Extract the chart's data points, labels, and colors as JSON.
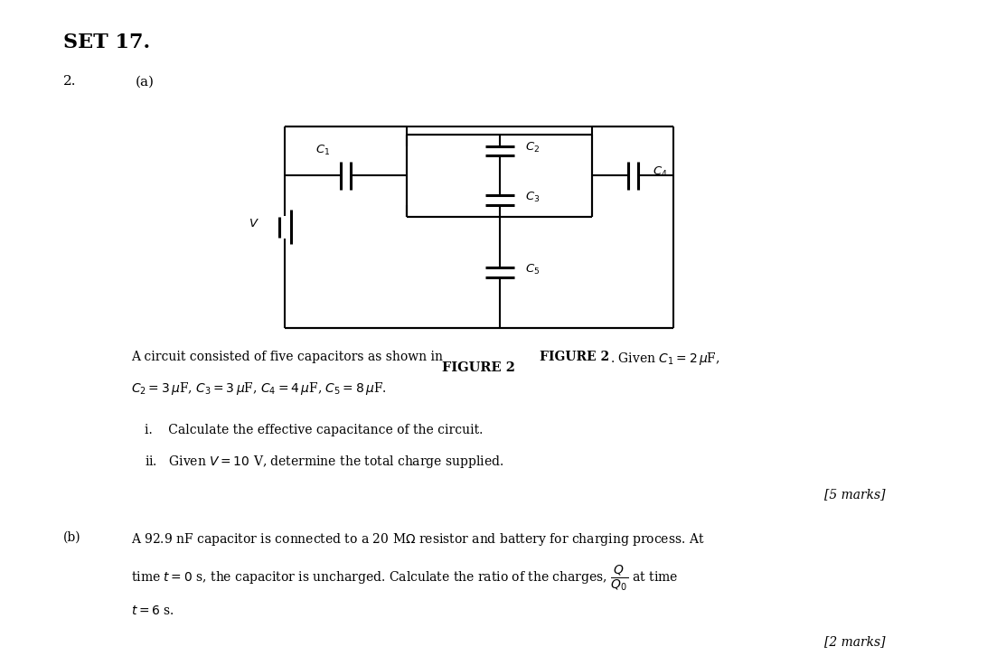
{
  "title": "SET 17.",
  "background_color": "#ffffff",
  "text_color": "#000000",
  "fig_width": 10.94,
  "fig_height": 7.02,
  "set_title": "SET 17.",
  "question_number": "2.",
  "part_a": "(a)",
  "figure_label": "FIGURE 2",
  "body_text_line1": "A circuit consisted of five capacitors as shown in ",
  "body_text_bold1": "FIGURE 2",
  "body_text_line1b": ". Given $C_1 = 2\\,\\mu$F,",
  "body_text_line2": "$C_2 = 3\\,\\mu$F, $C_3 = 3\\,\\mu$F, $C_4 = 4\\,\\mu$F, $C_5 = 8\\,\\mu$F.",
  "sub_i": "i.\\hspace{4pt}   Calculate the effective capacitance of the circuit.",
  "sub_ii": "ii.\\hspace{2pt}  Given $V = 10$ V, determine the total charge supplied.",
  "marks_a": "[5 marks]",
  "part_b_label": "(b)",
  "part_b_text1": "A 92.9 nF capacitor is connected to a 20 M$\\Omega$ resistor and battery for charging process. At",
  "part_b_text2": "time $t = 0$ s, the capacitor is uncharged. Calculate the ratio of the charges, $\\dfrac{Q}{Q_0}$ at time",
  "part_b_text3": "$t = 6$ s.",
  "marks_b": "[2 marks]"
}
